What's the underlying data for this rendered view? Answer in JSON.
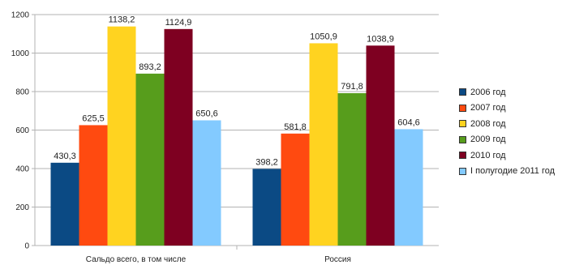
{
  "chart_data": {
    "type": "bar",
    "categories": [
      "Сальдо всего, в том числе",
      "Россия"
    ],
    "series": [
      {
        "name": "2006 год",
        "color": "#0b4a84",
        "values": [
          430.3,
          398.2
        ],
        "labels": [
          "430,3",
          "398,2"
        ]
      },
      {
        "name": "2007 год",
        "color": "#ff4a10",
        "values": [
          625.5,
          581.8
        ],
        "labels": [
          "625,5",
          "581,8"
        ]
      },
      {
        "name": "2008 год",
        "color": "#ffd320",
        "values": [
          1138.2,
          1050.9
        ],
        "labels": [
          "1138,2",
          "1050,9"
        ]
      },
      {
        "name": "2009 год",
        "color": "#579d1c",
        "values": [
          893.2,
          791.8
        ],
        "labels": [
          "893,2",
          "791,8"
        ]
      },
      {
        "name": "2010 год",
        "color": "#7e0021",
        "values": [
          1124.9,
          1038.9
        ],
        "labels": [
          "1124,9",
          "1038,9"
        ]
      },
      {
        "name": "I полугодие 2011 год",
        "color": "#83caff",
        "values": [
          650.6,
          604.6
        ],
        "labels": [
          "650,6",
          "604,6"
        ]
      }
    ],
    "yticks": [
      "0",
      "200",
      "400",
      "600",
      "800",
      "1000",
      "1200"
    ],
    "ylim": [
      0,
      1200
    ],
    "grid": true,
    "legend_position": "right"
  }
}
